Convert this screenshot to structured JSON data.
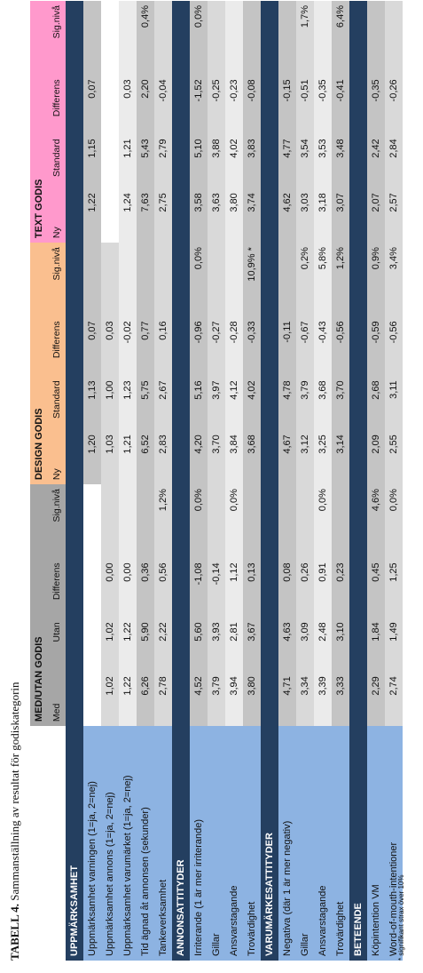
{
  "caption": {
    "label": "TABELL 4.",
    "text": "Sammanställning av resultat för godiskategorin"
  },
  "footnote": "* signifikant strax över 10%",
  "groups": [
    "MED/UTAN GODIS",
    "DESIGN GODIS",
    "TEXT GODIS"
  ],
  "subheaders": [
    [
      "Med",
      "Utan",
      "Differens",
      "Sig.nivå"
    ],
    [
      "Ny",
      "Standard",
      "Differens",
      "Sig.nivå"
    ],
    [
      "Ny",
      "Standard",
      "Differens",
      "Sig.nivå"
    ]
  ],
  "sections": [
    {
      "title": "UPPMÄRKSAMHET",
      "rows": [
        {
          "label": "Uppmärksamhet varningen (1=ja, 2=nej)",
          "values": [
            [
              "",
              "",
              "",
              ""
            ],
            [
              "1,20",
              "1,13",
              "0,07",
              ""
            ],
            [
              "1,22",
              "1,15",
              "0,07",
              ""
            ]
          ]
        },
        {
          "label": "Uppmärksamhet annons (1=ja, 2=nej)",
          "values": [
            [
              "1,02",
              "1,02",
              "0,00",
              ""
            ],
            [
              "1,03",
              "1,00",
              "0,03",
              ""
            ],
            [
              "",
              "",
              "",
              ""
            ]
          ]
        },
        {
          "label": "Uppmärksamhet varumärket (1=ja, 2=nej)",
          "values": [
            [
              "1,22",
              "1,22",
              "0,00",
              ""
            ],
            [
              "1,21",
              "1,23",
              "-0,02",
              ""
            ],
            [
              "1,24",
              "1,21",
              "0,03",
              ""
            ]
          ]
        },
        {
          "label": "Tid ägnad åt annonsen (sekunder)",
          "values": [
            [
              "6,26",
              "5,90",
              "0,36",
              ""
            ],
            [
              "6,52",
              "5,75",
              "0,77",
              ""
            ],
            [
              "7,63",
              "5,43",
              "2,20",
              "0,4%"
            ]
          ]
        },
        {
          "label": "Tankeverksamhet",
          "values": [
            [
              "2,78",
              "2,22",
              "0,56",
              "1,2%"
            ],
            [
              "2,83",
              "2,67",
              "0,16",
              ""
            ],
            [
              "2,75",
              "2,79",
              "-0,04",
              ""
            ]
          ]
        }
      ]
    },
    {
      "title": "ANNONSATTITYDER",
      "rows": [
        {
          "label": "Irriterande (1 är mer irriterande)",
          "values": [
            [
              "4,52",
              "5,60",
              "-1,08",
              "0,0%"
            ],
            [
              "4,20",
              "5,16",
              "-0,96",
              "0,0%"
            ],
            [
              "3,58",
              "5,10",
              "-1,52",
              "0,0%"
            ]
          ]
        },
        {
          "label": "Gillar",
          "values": [
            [
              "3,79",
              "3,93",
              "-0,14",
              ""
            ],
            [
              "3,70",
              "3,97",
              "-0,27",
              ""
            ],
            [
              "3,63",
              "3,88",
              "-0,25",
              ""
            ]
          ]
        },
        {
          "label": "Ansvarstagande",
          "values": [
            [
              "3,94",
              "2,81",
              "1,12",
              "0,0%"
            ],
            [
              "3,84",
              "4,12",
              "-0,28",
              ""
            ],
            [
              "3,80",
              "4,02",
              "-0,23",
              ""
            ]
          ]
        },
        {
          "label": "Trovärdighet",
          "values": [
            [
              "3,80",
              "3,67",
              "0,13",
              ""
            ],
            [
              "3,68",
              "4,02",
              "-0,33",
              "10,9% *"
            ],
            [
              "3,74",
              "3,83",
              "-0,08",
              ""
            ]
          ]
        }
      ]
    },
    {
      "title": "VARUMÄRKESATTITYDER",
      "rows": [
        {
          "label": "Negativa (där 1 är mer negativ)",
          "values": [
            [
              "4,71",
              "4,63",
              "0,08",
              ""
            ],
            [
              "4,67",
              "4,78",
              "-0,11",
              ""
            ],
            [
              "4,62",
              "4,77",
              "-0,15",
              ""
            ]
          ]
        },
        {
          "label": "Gillar",
          "values": [
            [
              "3,34",
              "3,09",
              "0,26",
              ""
            ],
            [
              "3,12",
              "3,79",
              "-0,67",
              "0,2%"
            ],
            [
              "3,03",
              "3,54",
              "-0,51",
              "1,7%"
            ]
          ]
        },
        {
          "label": "Ansvarstagande",
          "values": [
            [
              "3,39",
              "2,48",
              "0,91",
              "0,0%"
            ],
            [
              "3,25",
              "3,68",
              "-0,43",
              "5,8%"
            ],
            [
              "3,18",
              "3,53",
              "-0,35",
              ""
            ]
          ]
        },
        {
          "label": "Trovärdighet",
          "values": [
            [
              "3,33",
              "3,10",
              "0,23",
              ""
            ],
            [
              "3,14",
              "3,70",
              "-0,56",
              "1,2%"
            ],
            [
              "3,07",
              "3,48",
              "-0,41",
              "6,4%"
            ]
          ]
        }
      ]
    },
    {
      "title": "BETEENDE",
      "rows": [
        {
          "label": "Köpintention VM",
          "values": [
            [
              "2,29",
              "1,84",
              "0,45",
              "4,6%"
            ],
            [
              "2,09",
              "2,68",
              "-0,59",
              "0,9%"
            ],
            [
              "2,07",
              "2,42",
              "-0,35",
              ""
            ]
          ]
        },
        {
          "label": "Word-of-mouth-intentioner",
          "values": [
            [
              "2,74",
              "1,49",
              "1,25",
              "0,0%"
            ],
            [
              "2,55",
              "3,11",
              "-0,56",
              "3,4%"
            ],
            [
              "2,57",
              "2,84",
              "-0,26",
              ""
            ]
          ]
        }
      ]
    }
  ],
  "colors": {
    "section_header": "#243f60",
    "label_column": "#8db3e2",
    "group_med_utan": "#a6a6a6",
    "group_design": "#fabf8f",
    "group_text": "#ff99cc"
  }
}
